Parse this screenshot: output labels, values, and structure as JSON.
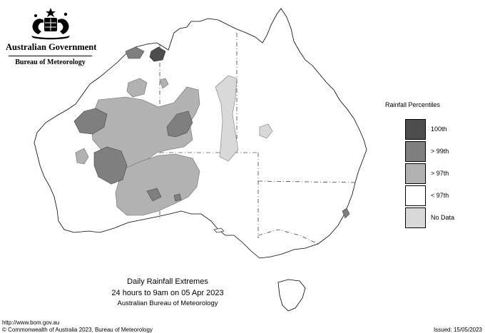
{
  "header": {
    "crest_icon": "commonwealth-coat-of-arms",
    "government": "Australian Government",
    "bureau": "Bureau of Meteorology"
  },
  "legend": {
    "title": "Rainfall Percentiles",
    "items": [
      {
        "label": "100th",
        "color": "#4d4d4d"
      },
      {
        "label": "> 99th",
        "color": "#7f7f7f"
      },
      {
        "label": "> 97th",
        "color": "#b2b2b2"
      },
      {
        "label": "< 97th",
        "color": "#ffffff"
      },
      {
        "label": "No Data",
        "color": "#d9d9d9"
      }
    ]
  },
  "caption": {
    "line1": "Daily Rainfall Extremes",
    "line2": "24 hours to 9am on 05 Apr 2023",
    "line3": "Australian Bureau of Meteorology"
  },
  "footer": {
    "url": "http://www.bom.gov.au",
    "copyright": "© Commonwealth of Australia 2023, Bureau of Meteorology",
    "issued": "Issued: 15/05/2023"
  },
  "colors": {
    "percentile_100": "#4d4d4d",
    "percentile_99": "#7f7f7f",
    "percentile_97": "#b2b2b2",
    "no_data": "#d9d9d9",
    "outline": "#000000"
  }
}
